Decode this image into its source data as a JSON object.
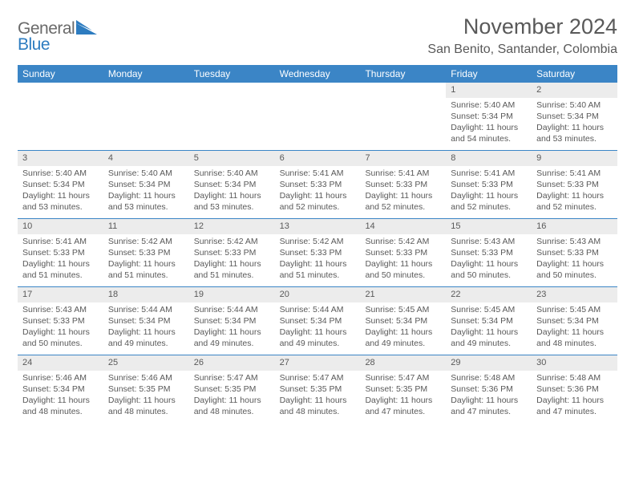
{
  "logo": {
    "text1": "General",
    "text2": "Blue",
    "shape_color": "#2d7cc0",
    "text1_color": "#6a6a6a"
  },
  "title": "November 2024",
  "location": "San Benito, Santander, Colombia",
  "header_bg": "#3b85c6",
  "daynum_bg": "#ececec",
  "row_border": "#3b85c6",
  "text_color": "#595959",
  "weekdays": [
    "Sunday",
    "Monday",
    "Tuesday",
    "Wednesday",
    "Thursday",
    "Friday",
    "Saturday"
  ],
  "weeks": [
    [
      null,
      null,
      null,
      null,
      null,
      {
        "n": "1",
        "sunrise": "5:40 AM",
        "sunset": "5:34 PM",
        "daylight": "11 hours and 54 minutes."
      },
      {
        "n": "2",
        "sunrise": "5:40 AM",
        "sunset": "5:34 PM",
        "daylight": "11 hours and 53 minutes."
      }
    ],
    [
      {
        "n": "3",
        "sunrise": "5:40 AM",
        "sunset": "5:34 PM",
        "daylight": "11 hours and 53 minutes."
      },
      {
        "n": "4",
        "sunrise": "5:40 AM",
        "sunset": "5:34 PM",
        "daylight": "11 hours and 53 minutes."
      },
      {
        "n": "5",
        "sunrise": "5:40 AM",
        "sunset": "5:34 PM",
        "daylight": "11 hours and 53 minutes."
      },
      {
        "n": "6",
        "sunrise": "5:41 AM",
        "sunset": "5:33 PM",
        "daylight": "11 hours and 52 minutes."
      },
      {
        "n": "7",
        "sunrise": "5:41 AM",
        "sunset": "5:33 PM",
        "daylight": "11 hours and 52 minutes."
      },
      {
        "n": "8",
        "sunrise": "5:41 AM",
        "sunset": "5:33 PM",
        "daylight": "11 hours and 52 minutes."
      },
      {
        "n": "9",
        "sunrise": "5:41 AM",
        "sunset": "5:33 PM",
        "daylight": "11 hours and 52 minutes."
      }
    ],
    [
      {
        "n": "10",
        "sunrise": "5:41 AM",
        "sunset": "5:33 PM",
        "daylight": "11 hours and 51 minutes."
      },
      {
        "n": "11",
        "sunrise": "5:42 AM",
        "sunset": "5:33 PM",
        "daylight": "11 hours and 51 minutes."
      },
      {
        "n": "12",
        "sunrise": "5:42 AM",
        "sunset": "5:33 PM",
        "daylight": "11 hours and 51 minutes."
      },
      {
        "n": "13",
        "sunrise": "5:42 AM",
        "sunset": "5:33 PM",
        "daylight": "11 hours and 51 minutes."
      },
      {
        "n": "14",
        "sunrise": "5:42 AM",
        "sunset": "5:33 PM",
        "daylight": "11 hours and 50 minutes."
      },
      {
        "n": "15",
        "sunrise": "5:43 AM",
        "sunset": "5:33 PM",
        "daylight": "11 hours and 50 minutes."
      },
      {
        "n": "16",
        "sunrise": "5:43 AM",
        "sunset": "5:33 PM",
        "daylight": "11 hours and 50 minutes."
      }
    ],
    [
      {
        "n": "17",
        "sunrise": "5:43 AM",
        "sunset": "5:33 PM",
        "daylight": "11 hours and 50 minutes."
      },
      {
        "n": "18",
        "sunrise": "5:44 AM",
        "sunset": "5:34 PM",
        "daylight": "11 hours and 49 minutes."
      },
      {
        "n": "19",
        "sunrise": "5:44 AM",
        "sunset": "5:34 PM",
        "daylight": "11 hours and 49 minutes."
      },
      {
        "n": "20",
        "sunrise": "5:44 AM",
        "sunset": "5:34 PM",
        "daylight": "11 hours and 49 minutes."
      },
      {
        "n": "21",
        "sunrise": "5:45 AM",
        "sunset": "5:34 PM",
        "daylight": "11 hours and 49 minutes."
      },
      {
        "n": "22",
        "sunrise": "5:45 AM",
        "sunset": "5:34 PM",
        "daylight": "11 hours and 49 minutes."
      },
      {
        "n": "23",
        "sunrise": "5:45 AM",
        "sunset": "5:34 PM",
        "daylight": "11 hours and 48 minutes."
      }
    ],
    [
      {
        "n": "24",
        "sunrise": "5:46 AM",
        "sunset": "5:34 PM",
        "daylight": "11 hours and 48 minutes."
      },
      {
        "n": "25",
        "sunrise": "5:46 AM",
        "sunset": "5:35 PM",
        "daylight": "11 hours and 48 minutes."
      },
      {
        "n": "26",
        "sunrise": "5:47 AM",
        "sunset": "5:35 PM",
        "daylight": "11 hours and 48 minutes."
      },
      {
        "n": "27",
        "sunrise": "5:47 AM",
        "sunset": "5:35 PM",
        "daylight": "11 hours and 48 minutes."
      },
      {
        "n": "28",
        "sunrise": "5:47 AM",
        "sunset": "5:35 PM",
        "daylight": "11 hours and 47 minutes."
      },
      {
        "n": "29",
        "sunrise": "5:48 AM",
        "sunset": "5:36 PM",
        "daylight": "11 hours and 47 minutes."
      },
      {
        "n": "30",
        "sunrise": "5:48 AM",
        "sunset": "5:36 PM",
        "daylight": "11 hours and 47 minutes."
      }
    ]
  ],
  "labels": {
    "sunrise": "Sunrise:",
    "sunset": "Sunset:",
    "daylight": "Daylight:"
  }
}
